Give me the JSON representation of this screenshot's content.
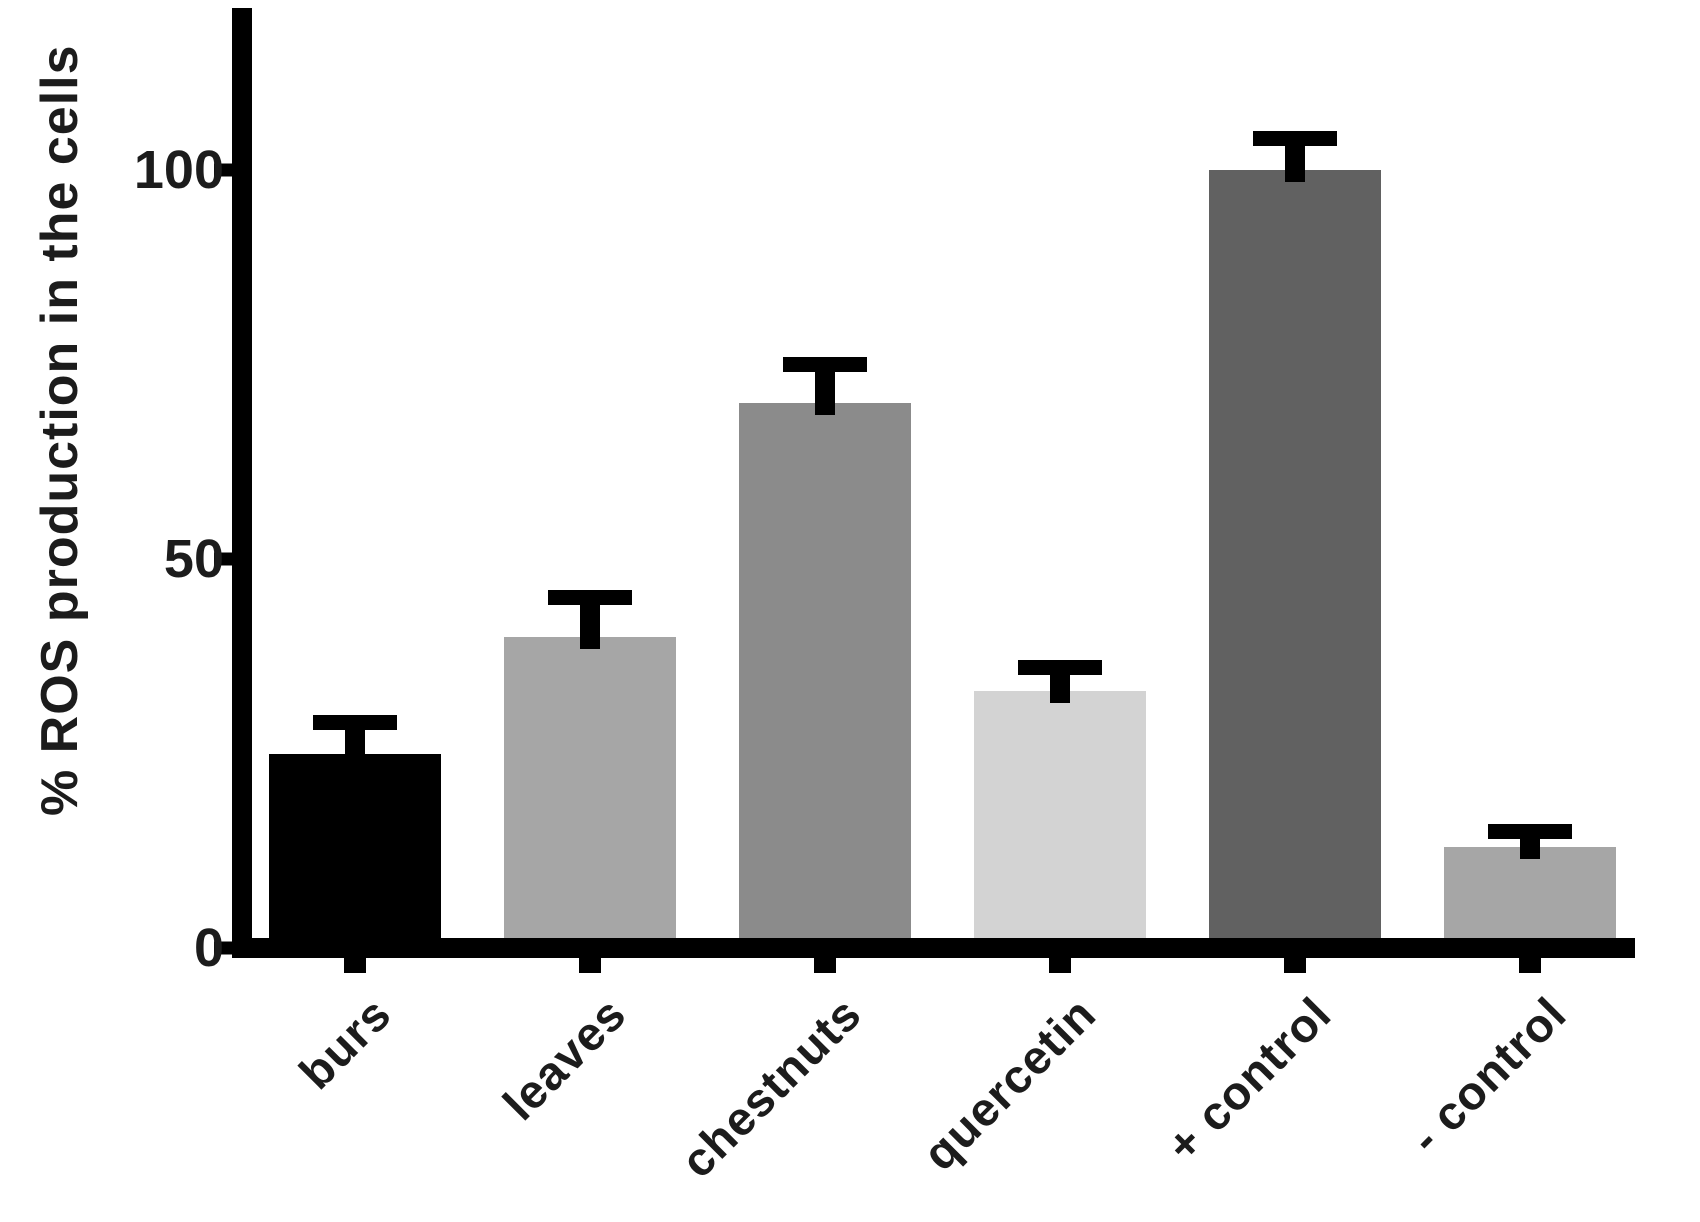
{
  "chart_data": {
    "type": "bar",
    "title": "",
    "xlabel": "",
    "ylabel": "% ROS production in the cells",
    "categories": [
      "burs",
      "leaves",
      "chestnuts",
      "quercetin",
      "+ control",
      "- control"
    ],
    "values": [
      25,
      40,
      70,
      33,
      100,
      13
    ],
    "error_sd": [
      4,
      5,
      5,
      3,
      4,
      2
    ],
    "error_bar_direction": "plus-only",
    "bar_colors": [
      "#000000",
      "#a6a6a6",
      "#8b8b8b",
      "#d3d3d3",
      "#616161",
      "#a6a6a6"
    ],
    "y_ticks": [
      0,
      50,
      100
    ],
    "ylim": [
      0,
      121
    ],
    "grid": false,
    "legend": "none",
    "background_color": "#ffffff",
    "axis_color": "#000000",
    "error_color": "#000000",
    "x_label_rotation_deg": -45
  }
}
